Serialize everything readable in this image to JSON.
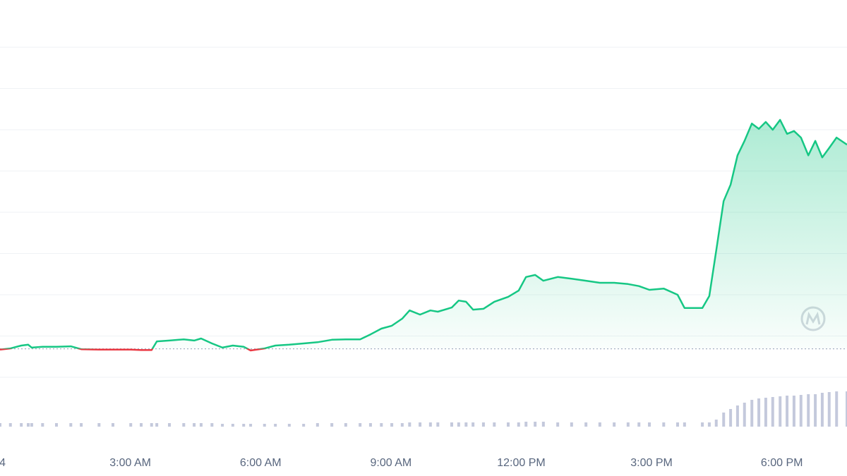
{
  "chart_data": {
    "type": "line",
    "x": [
      0,
      0.24,
      0.49,
      0.65,
      0.73,
      0.98,
      1.3,
      1.63,
      1.87,
      2.28,
      2.6,
      3.01,
      3.25,
      3.49,
      3.61,
      3.9,
      4.23,
      4.47,
      4.63,
      4.88,
      5.12,
      5.36,
      5.61,
      5.77,
      6.09,
      6.34,
      6.66,
      6.99,
      7.31,
      7.64,
      7.96,
      8.29,
      8.53,
      8.78,
      9.02,
      9.26,
      9.43,
      9.67,
      9.91,
      10.08,
      10.4,
      10.56,
      10.73,
      10.89,
      11.13,
      11.38,
      11.7,
      11.94,
      12.11,
      12.32,
      12.51,
      12.84,
      13.16,
      13.49,
      13.81,
      14.14,
      14.46,
      14.71,
      14.95,
      15.28,
      15.6,
      15.76,
      16.17,
      16.33,
      16.49,
      16.66,
      16.82,
      16.98,
      17.14,
      17.31,
      17.47,
      17.63,
      17.79,
      17.96,
      18.12,
      18.28,
      18.44,
      18.61,
      18.77,
      18.93,
      19.09,
      19.26,
      19.5
    ],
    "series": [
      {
        "values": [
          0.67,
          0.7,
          0.77,
          0.79,
          0.72,
          0.74,
          0.74,
          0.75,
          0.68,
          0.67,
          0.67,
          0.67,
          0.66,
          0.66,
          0.87,
          0.89,
          0.92,
          0.89,
          0.94,
          0.82,
          0.72,
          0.77,
          0.74,
          0.65,
          0.7,
          0.77,
          0.79,
          0.82,
          0.85,
          0.91,
          0.92,
          0.92,
          1.04,
          1.18,
          1.25,
          1.42,
          1.62,
          1.52,
          1.62,
          1.59,
          1.69,
          1.86,
          1.83,
          1.64,
          1.66,
          1.83,
          1.95,
          2.1,
          2.43,
          2.48,
          2.34,
          2.43,
          2.39,
          2.34,
          2.29,
          2.29,
          2.26,
          2.21,
          2.12,
          2.15,
          2.0,
          1.68,
          1.68,
          1.97,
          3.08,
          4.27,
          4.67,
          5.38,
          5.73,
          6.15,
          6.02,
          6.19,
          6.0,
          6.24,
          5.9,
          5.97,
          5.81,
          5.38,
          5.73,
          5.33,
          5.56,
          5.81,
          5.64
        ],
        "color": "#16c784",
        "color_down": "#ea3943"
      },
      {
        "values": [
          5,
          5,
          5,
          5,
          5,
          5,
          5,
          5,
          5,
          5,
          5,
          5,
          5,
          5,
          5,
          5,
          5,
          5,
          5,
          5,
          4,
          4,
          4,
          4,
          4,
          4,
          4,
          4,
          5,
          5,
          5,
          5,
          5,
          5,
          5,
          5,
          6,
          6,
          6,
          6,
          6,
          6,
          6,
          6,
          6,
          6,
          6,
          6,
          7,
          7,
          7,
          6,
          6,
          6,
          6,
          6,
          6,
          6,
          6,
          6,
          6,
          6,
          6,
          6,
          10,
          20,
          25,
          30,
          34,
          38,
          40,
          41,
          42,
          43,
          44,
          44,
          45,
          46,
          46,
          48,
          49,
          50,
          50
        ],
        "color": "#c4c9dc",
        "axis": "y2"
      }
    ],
    "baseline": 0.69,
    "xlim": [
      0,
      19.5
    ],
    "xticks": [
      {
        "value": 0,
        "label": "4"
      },
      {
        "value": 3,
        "label": "3:00 AM"
      },
      {
        "value": 6,
        "label": "6:00 AM"
      },
      {
        "value": 9,
        "label": "9:00 AM"
      },
      {
        "value": 12,
        "label": "12:00 PM"
      },
      {
        "value": 15,
        "label": "3:00 PM"
      },
      {
        "value": 18,
        "label": "6:00 PM"
      }
    ],
    "ylim": [
      -1,
      9
    ],
    "yticks": [
      0,
      1,
      2,
      3,
      4,
      5,
      6,
      7,
      8
    ],
    "y2lim": [
      0,
      100
    ],
    "grid": true
  }
}
